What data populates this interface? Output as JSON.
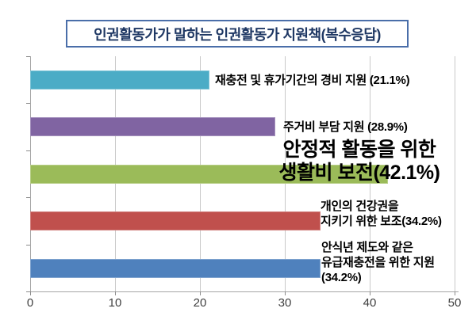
{
  "chart_data": {
    "type": "bar",
    "orientation": "horizontal",
    "title": "인권활동가가 말하는 인권활동가 지원책(복수응답)",
    "xlabel": "",
    "ylabel": "",
    "xlim": [
      0,
      50
    ],
    "x_ticks": [
      "0",
      "10",
      "20",
      "30",
      "40",
      "50"
    ],
    "grid": "vertical",
    "legend": "none",
    "categories": [
      "재충전 및 휴가기간의 경비 지원",
      "주거비 부담 지원",
      "안정적 활동을 위한 생활비 보전",
      "개인의 건강권을 지키기 위한 보조",
      "안식년 제도와 같은 유급재충전을 위한 지원"
    ],
    "values": [
      21.1,
      28.9,
      42.1,
      34.2,
      34.2
    ],
    "bars": [
      {
        "value": 21.1,
        "color": "#4bacc6",
        "label_lines": [
          "재충전 및 휴가기간의 경비 지원 (21.1%)"
        ]
      },
      {
        "value": 28.9,
        "color": "#8064a2",
        "label_lines": [
          "주거비 부담 지원 (28.9%)"
        ]
      },
      {
        "value": 42.1,
        "color": "#9bbb59",
        "label_lines": [
          "안정적 활동을 위한",
          "생활비 보전(42.1%)"
        ],
        "emphasized": true
      },
      {
        "value": 34.2,
        "color": "#c0504d",
        "label_lines": [
          "개인의 건강권을",
          "지키기 위한 보조(34.2%)"
        ]
      },
      {
        "value": 34.2,
        "color": "#4f81bd",
        "label_lines": [
          "안식년 제도와 같은",
          "유급재충전을 위한 지원",
          "(34.2%)"
        ]
      }
    ]
  },
  "colors": {
    "title": "#1f3864",
    "title_border": "#4a6ea9",
    "gridline": "#c9c9c9",
    "axis": "#a6a6a6",
    "tick": "#8c8c8c",
    "tick_label": "#3f3f3f"
  }
}
